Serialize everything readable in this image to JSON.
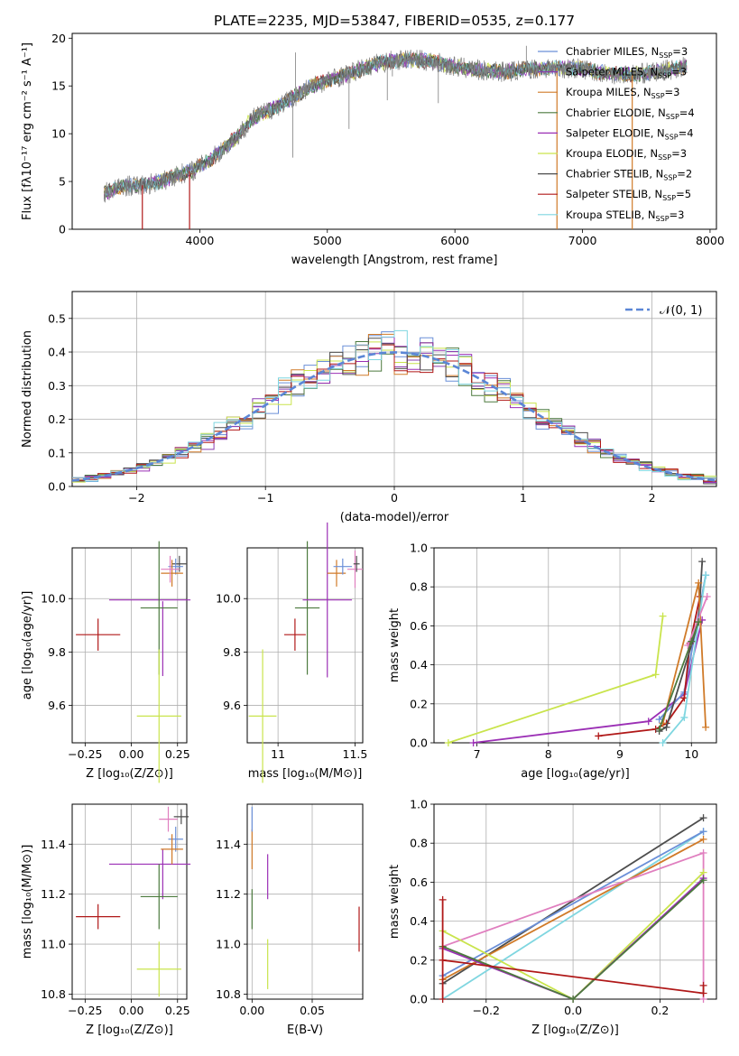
{
  "figure": {
    "title": "PLATE=2235, MJD=53847, FIBERID=0535, z=0.177"
  },
  "colors": {
    "chabrier_miles": "#6a8fd8",
    "salpeter_miles": "#8b3db0",
    "kroupa_miles": "#d07a28",
    "chabrier_elodie": "#4c7a3e",
    "salpeter_elodie": "#9b2fb5",
    "kroupa_elodie": "#c9e44c",
    "chabrier_stelib": "#4d4d4d",
    "salpeter_stelib": "#b01818",
    "kroupa_stelib": "#7fd6e0",
    "pink": "#e07fbf",
    "gauss": "#5b86d6"
  },
  "chart_data": [
    {
      "id": "spectrum",
      "type": "line",
      "xlabel": "wavelength [Angstrom, rest frame]",
      "ylabel": "Flux [fλ10⁻¹⁷ erg cm⁻² s⁻¹ A⁻¹]",
      "xlim": [
        3000,
        8050
      ],
      "ylim": [
        0,
        20.5
      ],
      "xticks": [
        4000,
        5000,
        6000,
        7000,
        8000
      ],
      "yticks": [
        0,
        5,
        10,
        15,
        20
      ],
      "legend_position": "top-right",
      "legend": [
        {
          "key": "chabrier_miles",
          "label": "Chabrier MILES, N",
          "sub": "SSP",
          "value": "=3"
        },
        {
          "key": "salpeter_miles",
          "label": "Salpeter MILES, N",
          "sub": "SSP",
          "value": "=3"
        },
        {
          "key": "kroupa_miles",
          "label": "Kroupa MILES, N",
          "sub": "SSP",
          "value": "=3"
        },
        {
          "key": "chabrier_elodie",
          "label": "Chabrier ELODIE, N",
          "sub": "SSP",
          "value": "=4"
        },
        {
          "key": "salpeter_elodie",
          "label": "Salpeter ELODIE, N",
          "sub": "SSP",
          "value": "=4"
        },
        {
          "key": "kroupa_elodie",
          "label": "Kroupa ELODIE, N",
          "sub": "SSP",
          "value": "=3"
        },
        {
          "key": "chabrier_stelib",
          "label": "Chabrier STELIB, N",
          "sub": "SSP",
          "value": "=2"
        },
        {
          "key": "salpeter_stelib",
          "label": "Salpeter STELIB, N",
          "sub": "SSP",
          "value": "=5"
        },
        {
          "key": "kroupa_stelib",
          "label": "Kroupa STELIB, N",
          "sub": "SSP",
          "value": "=3"
        }
      ],
      "continuum": [
        [
          3250,
          3.8
        ],
        [
          3400,
          4.5
        ],
        [
          3550,
          4.6
        ],
        [
          3700,
          5.0
        ],
        [
          3850,
          5.8
        ],
        [
          3950,
          6.2
        ],
        [
          4050,
          7.0
        ],
        [
          4150,
          8.0
        ],
        [
          4300,
          9.8
        ],
        [
          4400,
          11.5
        ],
        [
          4550,
          12.5
        ],
        [
          4700,
          13.5
        ],
        [
          4850,
          14.8
        ],
        [
          5000,
          15.6
        ],
        [
          5200,
          16.4
        ],
        [
          5400,
          17.4
        ],
        [
          5600,
          17.8
        ],
        [
          5800,
          17.6
        ],
        [
          6000,
          17.0
        ],
        [
          6200,
          16.6
        ],
        [
          6400,
          16.5
        ],
        [
          6600,
          16.8
        ],
        [
          6800,
          16.9
        ],
        [
          7000,
          16.8
        ],
        [
          7200,
          16.3
        ],
        [
          7400,
          16.2
        ],
        [
          7600,
          16.5
        ],
        [
          7800,
          17.0
        ]
      ],
      "spikes": [
        [
          4730,
          7.5
        ],
        [
          4750,
          18.5
        ],
        [
          5170,
          10.5
        ],
        [
          5470,
          13.5
        ],
        [
          5510,
          16.0
        ],
        [
          5870,
          13.2
        ],
        [
          6560,
          19.2
        ]
      ],
      "dips": [
        [
          3550,
          0
        ],
        [
          3920,
          0
        ],
        [
          6800,
          0
        ],
        [
          7390,
          0
        ]
      ]
    },
    {
      "id": "residuals",
      "type": "histogram",
      "xlabel": "(data-model)/error",
      "ylabel": "Normed distribution",
      "xlim": [
        -2.5,
        2.5
      ],
      "ylim": [
        0,
        0.58
      ],
      "xticks": [
        -2,
        -1,
        0,
        1,
        2
      ],
      "yticks": [
        0.0,
        0.1,
        0.2,
        0.3,
        0.4,
        0.5
      ],
      "grid": true,
      "legend_position": "top-right",
      "gauss_label": "𝒩(0, 1)",
      "bin_width": 0.1
    },
    {
      "id": "age_vs_Z",
      "type": "errorbar",
      "xlabel": "Z [log₁₀(Z/Z⊙)]",
      "ylabel": "age  [log₁₀(age/yr)]",
      "xlim": [
        -0.32,
        0.3
      ],
      "ylim": [
        9.46,
        10.19
      ],
      "xticks": [
        -0.25,
        0.0,
        0.25
      ],
      "xticklabels": [
        "−0.25",
        "0.00",
        "0.25"
      ],
      "yticks": [
        9.6,
        9.8,
        10.0
      ],
      "points": [
        {
          "key": "salpeter_stelib",
          "x": -0.18,
          "xerr": 0.12,
          "y": 9.865,
          "yerr": 0.06
        },
        {
          "key": "salpeter_elodie",
          "x": 0.1,
          "xerr": 0.22,
          "y": 9.995,
          "yerr": 0.0
        },
        {
          "key": "salpeter_elodie",
          "x": 0.17,
          "xerr": 0.0,
          "y": 9.85,
          "yerr": 0.14
        },
        {
          "key": "chabrier_elodie",
          "x": 0.15,
          "xerr": 0.1,
          "y": 9.965,
          "yerr": 0.25
        },
        {
          "key": "kroupa_elodie",
          "x": 0.15,
          "xerr": 0.12,
          "y": 9.56,
          "yerr": 0.25
        },
        {
          "key": "chabrier_stelib",
          "x": 0.26,
          "xerr": 0.04,
          "y": 10.13,
          "yerr": 0.03
        },
        {
          "key": "chabrier_miles",
          "x": 0.24,
          "xerr": 0.04,
          "y": 10.12,
          "yerr": 0.03
        },
        {
          "key": "kroupa_miles",
          "x": 0.22,
          "xerr": 0.06,
          "y": 10.095,
          "yerr": 0.05
        },
        {
          "key": "pink",
          "x": 0.21,
          "xerr": 0.05,
          "y": 10.11,
          "yerr": 0.05
        }
      ]
    },
    {
      "id": "age_vs_mass",
      "type": "errorbar",
      "xlabel": "mass [log₁₀(M/M⊙)]",
      "ylabel": "",
      "xlim": [
        10.8,
        11.55
      ],
      "ylim": [
        9.46,
        10.19
      ],
      "xticks": [
        11.0,
        11.5
      ],
      "yticks": [
        9.6,
        9.8,
        10.0
      ],
      "points": [
        {
          "key": "kroupa_elodie",
          "x": 10.9,
          "xerr": 0.09,
          "y": 9.56,
          "yerr": 0.25
        },
        {
          "key": "salpeter_stelib",
          "x": 11.11,
          "xerr": 0.07,
          "y": 9.865,
          "yerr": 0.06
        },
        {
          "key": "chabrier_elodie",
          "x": 11.19,
          "xerr": 0.08,
          "y": 9.965,
          "yerr": 0.25
        },
        {
          "key": "salpeter_elodie",
          "x": 11.32,
          "xerr": 0.16,
          "y": 9.995,
          "yerr": 0.29
        },
        {
          "key": "kroupa_miles",
          "x": 11.38,
          "xerr": 0.06,
          "y": 10.095,
          "yerr": 0.05
        },
        {
          "key": "chabrier_miles",
          "x": 11.42,
          "xerr": 0.06,
          "y": 10.12,
          "yerr": 0.03
        },
        {
          "key": "pink",
          "x": 11.5,
          "xerr": 0.05,
          "y": 10.11,
          "yerr": 0.07
        },
        {
          "key": "chabrier_stelib",
          "x": 11.51,
          "xerr": 0.02,
          "y": 10.13,
          "yerr": 0.03
        }
      ]
    },
    {
      "id": "mass_weight_vs_age",
      "type": "line",
      "xlabel": "age  [log₁₀(age/yr)]",
      "ylabel": "mass weight",
      "xlim": [
        6.4,
        10.35
      ],
      "ylim": [
        0,
        1.0
      ],
      "xticks": [
        7,
        8,
        9,
        10
      ],
      "yticks": [
        0.0,
        0.2,
        0.4,
        0.6,
        0.8,
        1.0
      ],
      "grid": true,
      "series": [
        {
          "key": "kroupa_elodie",
          "points": [
            [
              6.6,
              0.0
            ],
            [
              9.5,
              0.35
            ],
            [
              9.6,
              0.65
            ]
          ]
        },
        {
          "key": "salpeter_elodie",
          "points": [
            [
              6.95,
              0.0
            ],
            [
              9.4,
              0.11
            ],
            [
              9.9,
              0.25
            ],
            [
              10.15,
              0.63
            ]
          ]
        },
        {
          "key": "chabrier_miles",
          "points": [
            [
              9.55,
              0.12
            ],
            [
              9.9,
              0.26
            ],
            [
              10.2,
              0.86
            ]
          ]
        },
        {
          "key": "salpeter_stelib",
          "points": [
            [
              8.7,
              0.035
            ],
            [
              9.5,
              0.07
            ],
            [
              9.65,
              0.1
            ],
            [
              9.9,
              0.23
            ],
            [
              9.98,
              0.51
            ],
            [
              10.12,
              0.75
            ]
          ]
        },
        {
          "key": "chabrier_stelib",
          "points": [
            [
              9.55,
              0.06
            ],
            [
              9.65,
              0.08
            ],
            [
              10.1,
              0.62
            ],
            [
              10.15,
              0.93
            ]
          ]
        },
        {
          "key": "kroupa_miles",
          "points": [
            [
              9.6,
              0.1
            ],
            [
              10.1,
              0.82
            ],
            [
              10.2,
              0.08
            ]
          ]
        },
        {
          "key": "kroupa_stelib",
          "points": [
            [
              9.6,
              0.0
            ],
            [
              9.9,
              0.13
            ],
            [
              10.2,
              0.86
            ]
          ]
        },
        {
          "key": "pink",
          "points": [
            [
              9.95,
              0.5
            ],
            [
              10.22,
              0.75
            ]
          ]
        },
        {
          "key": "chabrier_elodie",
          "points": [
            [
              9.55,
              0.07
            ],
            [
              10.0,
              0.52
            ],
            [
              10.1,
              0.62
            ]
          ]
        }
      ]
    },
    {
      "id": "mass_vs_Z",
      "type": "errorbar",
      "xlabel": "Z [log₁₀(Z/Z⊙)]",
      "ylabel": "mass [log₁₀(M/M⊙)]",
      "xlim": [
        -0.32,
        0.3
      ],
      "ylim": [
        10.78,
        11.56
      ],
      "xticks": [
        -0.25,
        0.0,
        0.25
      ],
      "xticklabels": [
        "−0.25",
        "0.00",
        "0.25"
      ],
      "yticks": [
        10.8,
        11.0,
        11.2,
        11.4
      ],
      "points": [
        {
          "key": "salpeter_stelib",
          "x": -0.18,
          "xerr": 0.12,
          "y": 11.11,
          "yerr": 0.05
        },
        {
          "key": "salpeter_elodie",
          "x": 0.1,
          "xerr": 0.22,
          "y": 11.32,
          "yerr": 0.0
        },
        {
          "key": "salpeter_elodie",
          "x": 0.17,
          "xerr": 0.0,
          "y": 11.28,
          "yerr": 0.1
        },
        {
          "key": "chabrier_elodie",
          "x": 0.15,
          "xerr": 0.1,
          "y": 11.19,
          "yerr": 0.13
        },
        {
          "key": "kroupa_elodie",
          "x": 0.15,
          "xerr": 0.12,
          "y": 10.9,
          "yerr": 0.11
        },
        {
          "key": "chabrier_stelib",
          "x": 0.27,
          "xerr": 0.04,
          "y": 11.51,
          "yerr": 0.03
        },
        {
          "key": "chabrier_miles",
          "x": 0.24,
          "xerr": 0.04,
          "y": 11.42,
          "yerr": 0.05
        },
        {
          "key": "kroupa_miles",
          "x": 0.22,
          "xerr": 0.06,
          "y": 11.38,
          "yerr": 0.06
        },
        {
          "key": "pink",
          "x": 0.2,
          "xerr": 0.05,
          "y": 11.5,
          "yerr": 0.05
        }
      ]
    },
    {
      "id": "mass_vs_ebv",
      "type": "errorbar",
      "xlabel": "E(B-V)",
      "ylabel": "",
      "xlim": [
        -0.004,
        0.092
      ],
      "ylim": [
        10.78,
        11.56
      ],
      "xticks": [
        0.0,
        0.05
      ],
      "xticklabels": [
        "0.00",
        "0.05"
      ],
      "yticks": [
        10.8,
        11.0,
        11.2,
        11.4
      ],
      "points": [
        {
          "key": "chabrier_elodie",
          "x": 0.0,
          "xerr": 0.0,
          "y": 11.14,
          "yerr": 0.08
        },
        {
          "key": "kroupa_miles",
          "x": 0.0,
          "xerr": 0.0,
          "y": 11.38,
          "yerr": 0.08
        },
        {
          "key": "chabrier_miles",
          "x": 0.0,
          "xerr": 0.0,
          "y": 11.5,
          "yerr": 0.05
        },
        {
          "key": "salpeter_elodie",
          "x": 0.013,
          "xerr": 0.0,
          "y": 11.27,
          "yerr": 0.09
        },
        {
          "key": "kroupa_elodie",
          "x": 0.013,
          "xerr": 0.0,
          "y": 10.92,
          "yerr": 0.1
        },
        {
          "key": "salpeter_stelib",
          "x": 0.089,
          "xerr": 0.0,
          "y": 11.06,
          "yerr": 0.09
        }
      ]
    },
    {
      "id": "mass_weight_vs_Z",
      "type": "line",
      "xlabel": "Z [log₁₀(Z/Z⊙)]",
      "ylabel": "mass weight",
      "xlim": [
        -0.32,
        0.33
      ],
      "ylim": [
        0,
        1.0
      ],
      "xticks": [
        -0.2,
        0.0,
        0.2
      ],
      "xticklabels": [
        "−0.2",
        "0.0",
        "0.2"
      ],
      "yticks": [
        0.0,
        0.2,
        0.4,
        0.6,
        0.8,
        1.0
      ],
      "grid": true,
      "series": [
        {
          "key": "chabrier_stelib",
          "points": [
            [
              -0.3,
              0.08
            ],
            [
              0.3,
              0.93
            ]
          ]
        },
        {
          "key": "kroupa_stelib",
          "points": [
            [
              -0.3,
              0.0
            ],
            [
              0.3,
              0.86
            ]
          ]
        },
        {
          "key": "chabrier_miles",
          "points": [
            [
              -0.3,
              0.12
            ],
            [
              0.3,
              0.86
            ]
          ]
        },
        {
          "key": "kroupa_miles",
          "points": [
            [
              -0.3,
              0.1
            ],
            [
              0.3,
              0.82
            ]
          ]
        },
        {
          "key": "pink",
          "points": [
            [
              -0.3,
              0.27
            ],
            [
              0.3,
              0.75
            ],
            [
              0.3,
              0.0
            ]
          ]
        },
        {
          "key": "kroupa_elodie",
          "points": [
            [
              -0.3,
              0.35
            ],
            [
              0.0,
              0.0
            ],
            [
              0.3,
              0.65
            ]
          ]
        },
        {
          "key": "salpeter_elodie",
          "points": [
            [
              -0.3,
              0.26
            ],
            [
              0.0,
              0.0
            ],
            [
              0.3,
              0.62
            ]
          ]
        },
        {
          "key": "chabrier_elodie",
          "points": [
            [
              -0.3,
              0.27
            ],
            [
              0.0,
              0.0
            ],
            [
              0.3,
              0.61
            ]
          ]
        },
        {
          "key": "salpeter_stelib",
          "points": [
            [
              -0.3,
              0.51
            ],
            [
              -0.3,
              0.0
            ],
            [
              -0.3,
              0.2
            ],
            [
              0.3,
              0.03
            ],
            [
              0.3,
              0.07
            ]
          ]
        }
      ]
    }
  ]
}
